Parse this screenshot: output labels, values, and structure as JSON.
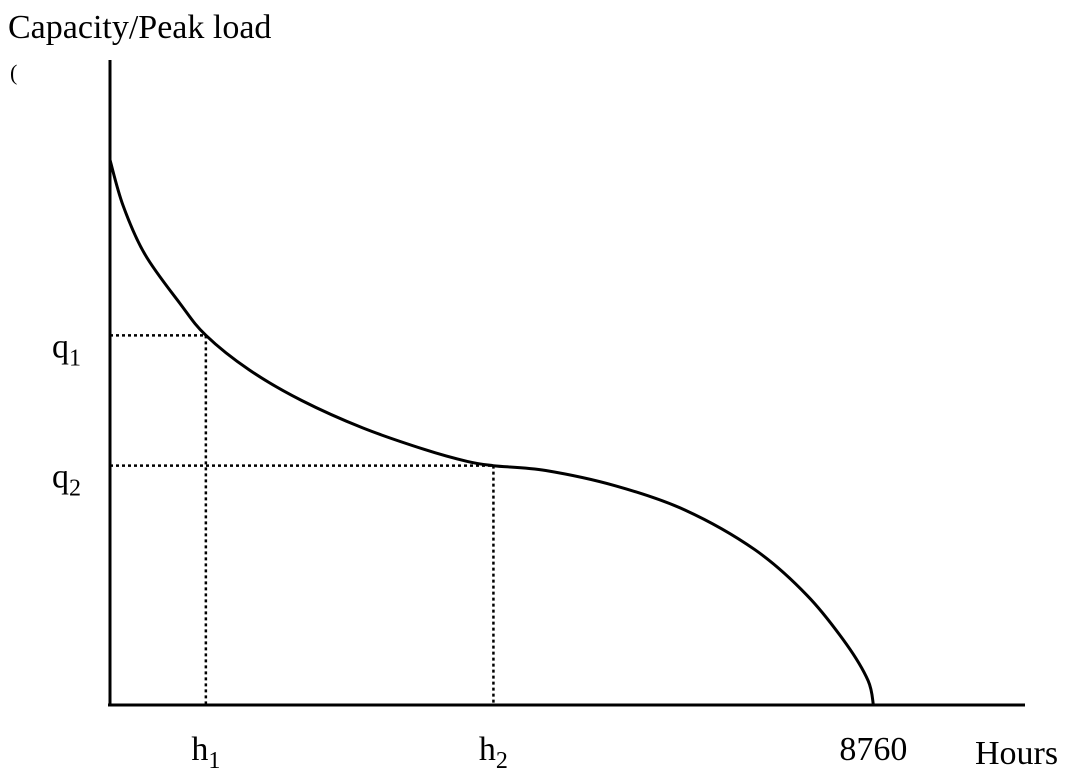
{
  "chart_data": {
    "type": "line",
    "title": "",
    "ylabel": "Capacity/Peak load",
    "ylabel_suffix": "(",
    "xlabel": "Hours",
    "x_ticks": [
      {
        "base": "h",
        "sub": "1",
        "value": 1100
      },
      {
        "base": "h",
        "sub": "2",
        "value": 4400
      },
      {
        "base": "8760",
        "sub": "",
        "value": 8760
      }
    ],
    "y_ticks": [
      {
        "base": "q",
        "sub": "1",
        "value": 0.607
      },
      {
        "base": "q",
        "sub": "2",
        "value": 0.393
      }
    ],
    "xlim": [
      0,
      10500
    ],
    "ylim": [
      0,
      1.0
    ],
    "series": [
      {
        "x": [
          0,
          150,
          400,
          800,
          1100,
          1600,
          2200,
          2900,
          3600,
          4100,
          4400,
          5000,
          5800,
          6600,
          7400,
          8000,
          8450,
          8700,
          8760
        ],
        "y": [
          0.895,
          0.82,
          0.74,
          0.66,
          0.607,
          0.55,
          0.5,
          0.455,
          0.42,
          0.4,
          0.393,
          0.385,
          0.36,
          0.32,
          0.255,
          0.18,
          0.1,
          0.04,
          0.0
        ]
      }
    ],
    "reference_lines": [
      {
        "x": 1100,
        "y": 0.607
      },
      {
        "x": 4400,
        "y": 0.393
      }
    ],
    "grid": false,
    "legend": "none"
  },
  "colors": {
    "line": "#000000",
    "axis": "#000000",
    "dotted": "#000000"
  }
}
